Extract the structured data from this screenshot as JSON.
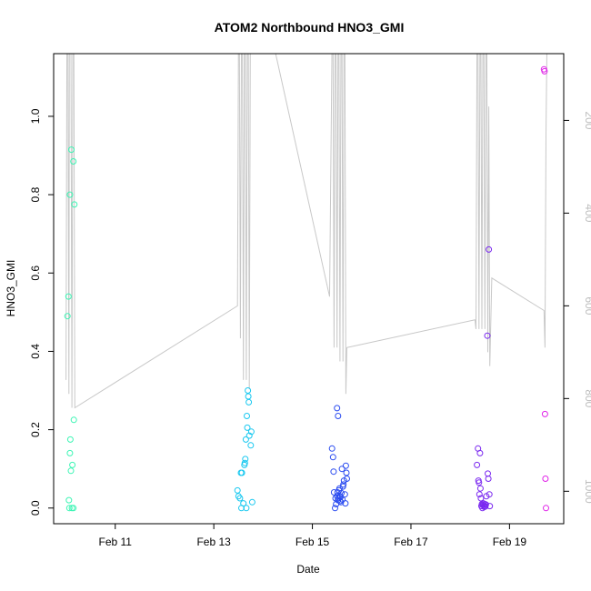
{
  "chart_data": {
    "type": "scatter",
    "title": "ATOM2 Northbound HNO3_GMI",
    "xlabel": "Date",
    "ylabel": "HNO3_GMI",
    "x_ticks": [
      "Feb 11",
      "Feb 13",
      "Feb 15",
      "Feb 17",
      "Feb 19"
    ],
    "x_tick_values": [
      11,
      13,
      15,
      17,
      19
    ],
    "y_ticks": [
      "0.0",
      "0.2",
      "0.4",
      "0.6",
      "0.8",
      "1.0"
    ],
    "y_tick_values": [
      0,
      0.2,
      0.4,
      0.6,
      0.8,
      1.0
    ],
    "y2_ticks": [
      "200",
      "400",
      "600",
      "800",
      "1000"
    ],
    "y2_tick_values": [
      200,
      400,
      600,
      800,
      1000
    ],
    "xlim": [
      9.75,
      20.1
    ],
    "ylim": [
      -0.04,
      1.16
    ],
    "y2lim": [
      1070,
      56
    ],
    "y2_reversed": true,
    "grid": false,
    "series": [
      {
        "color": "#3CF5B4",
        "points": [
          [
            10.03,
            0.49
          ],
          [
            10.05,
            0.54
          ],
          [
            10.06,
            0.02
          ],
          [
            10.07,
            0.0
          ],
          [
            10.08,
            0.14
          ],
          [
            10.08,
            0.8
          ],
          [
            10.09,
            0.175
          ],
          [
            10.1,
            0.095
          ],
          [
            10.11,
            0.915
          ],
          [
            10.12,
            0.0
          ],
          [
            10.13,
            0.11
          ],
          [
            10.15,
            0.0
          ],
          [
            10.15,
            0.885
          ],
          [
            10.16,
            0.225
          ],
          [
            10.17,
            0.775
          ]
        ]
      },
      {
        "color": "#18C8F0",
        "points": [
          [
            13.48,
            0.045
          ],
          [
            13.5,
            0.03
          ],
          [
            13.53,
            0.025
          ],
          [
            13.55,
            0.09
          ],
          [
            13.56,
            0.0
          ],
          [
            13.57,
            0.09
          ],
          [
            13.6,
            0.012
          ],
          [
            13.62,
            0.11
          ],
          [
            13.63,
            0.115
          ],
          [
            13.64,
            0.125
          ],
          [
            13.65,
            0.175
          ],
          [
            13.66,
            0.0
          ],
          [
            13.67,
            0.235
          ],
          [
            13.68,
            0.205
          ],
          [
            13.69,
            0.3
          ],
          [
            13.7,
            0.285
          ],
          [
            13.71,
            0.27
          ],
          [
            13.72,
            0.185
          ],
          [
            13.75,
            0.16
          ],
          [
            13.76,
            0.195
          ],
          [
            13.78,
            0.015
          ]
        ]
      },
      {
        "color": "#2A4BF0",
        "points": [
          [
            15.4,
            0.152
          ],
          [
            15.42,
            0.13
          ],
          [
            15.43,
            0.093
          ],
          [
            15.44,
            0.04
          ],
          [
            15.46,
            0.0
          ],
          [
            15.48,
            0.01
          ],
          [
            15.5,
            0.255
          ],
          [
            15.52,
            0.235
          ],
          [
            15.5,
            0.03
          ],
          [
            15.52,
            0.02
          ],
          [
            15.53,
            0.025
          ],
          [
            15.54,
            0.045
          ],
          [
            15.55,
            0.05
          ],
          [
            15.56,
            0.03
          ],
          [
            15.58,
            0.015
          ],
          [
            15.59,
            0.038
          ],
          [
            15.6,
            0.1
          ],
          [
            15.62,
            0.055
          ],
          [
            15.63,
            0.06
          ],
          [
            15.64,
            0.07
          ],
          [
            15.66,
            0.035
          ],
          [
            15.67,
            0.012
          ],
          [
            15.68,
            0.108
          ],
          [
            15.69,
            0.09
          ],
          [
            15.7,
            0.075
          ],
          [
            15.56,
            0.018
          ],
          [
            15.61,
            0.022
          ],
          [
            15.47,
            0.025
          ],
          [
            15.51,
            0.04
          ],
          [
            15.57,
            0.028
          ]
        ]
      },
      {
        "color": "#7A28F0",
        "points": [
          [
            18.34,
            0.11
          ],
          [
            18.36,
            0.152
          ],
          [
            18.37,
            0.07
          ],
          [
            18.38,
            0.065
          ],
          [
            18.39,
            0.035
          ],
          [
            18.4,
            0.14
          ],
          [
            18.41,
            0.05
          ],
          [
            18.42,
            0.025
          ],
          [
            18.43,
            0.005
          ],
          [
            18.44,
            0.01
          ],
          [
            18.45,
            0.0
          ],
          [
            18.46,
            0.008
          ],
          [
            18.47,
            0.012
          ],
          [
            18.48,
            0.006
          ],
          [
            18.49,
            0.003
          ],
          [
            18.5,
            0.01
          ],
          [
            18.51,
            0.004
          ],
          [
            18.52,
            0.009
          ],
          [
            18.53,
            0.03
          ],
          [
            18.55,
            0.44
          ],
          [
            18.56,
            0.088
          ],
          [
            18.57,
            0.075
          ],
          [
            18.58,
            0.66
          ],
          [
            18.59,
            0.035
          ],
          [
            18.6,
            0.005
          ]
        ]
      },
      {
        "color": "#E022E8",
        "points": [
          [
            19.7,
            1.12
          ],
          [
            19.71,
            1.115
          ],
          [
            19.72,
            0.24
          ],
          [
            19.73,
            0.075
          ],
          [
            19.74,
            0.0
          ]
        ]
      }
    ],
    "altitude_line": {
      "color": "#C8C8C8",
      "axis": "right",
      "points": [
        [
          10.0,
          760
        ],
        [
          10.02,
          30
        ],
        [
          10.04,
          30
        ],
        [
          10.06,
          790
        ],
        [
          10.07,
          30
        ],
        [
          10.1,
          30
        ],
        [
          10.12,
          820
        ],
        [
          10.14,
          30
        ],
        [
          10.16,
          30
        ],
        [
          10.18,
          820
        ],
        [
          13.48,
          600
        ],
        [
          13.5,
          30
        ],
        [
          13.52,
          30
        ],
        [
          13.54,
          670
        ],
        [
          13.56,
          30
        ],
        [
          13.58,
          30
        ],
        [
          13.6,
          760
        ],
        [
          13.62,
          30
        ],
        [
          13.64,
          30
        ],
        [
          13.66,
          760
        ],
        [
          13.68,
          30
        ],
        [
          13.7,
          30
        ],
        [
          13.72,
          780
        ],
        [
          13.74,
          30
        ],
        [
          13.76,
          30
        ],
        [
          14.2,
          30
        ],
        [
          15.35,
          580
        ],
        [
          15.4,
          30
        ],
        [
          15.42,
          30
        ],
        [
          15.44,
          690
        ],
        [
          15.46,
          30
        ],
        [
          15.48,
          30
        ],
        [
          15.5,
          690
        ],
        [
          15.52,
          30
        ],
        [
          15.54,
          30
        ],
        [
          15.56,
          720
        ],
        [
          15.58,
          30
        ],
        [
          15.6,
          30
        ],
        [
          15.62,
          720
        ],
        [
          15.64,
          30
        ],
        [
          15.66,
          30
        ],
        [
          15.68,
          790
        ],
        [
          15.7,
          690
        ],
        [
          18.3,
          630
        ],
        [
          18.32,
          650
        ],
        [
          18.34,
          30
        ],
        [
          18.36,
          30
        ],
        [
          18.38,
          650
        ],
        [
          18.4,
          30
        ],
        [
          18.42,
          30
        ],
        [
          18.44,
          650
        ],
        [
          18.46,
          30
        ],
        [
          18.48,
          30
        ],
        [
          18.5,
          650
        ],
        [
          18.52,
          30
        ],
        [
          18.54,
          30
        ],
        [
          18.56,
          700
        ],
        [
          18.58,
          170
        ],
        [
          18.6,
          730
        ],
        [
          18.64,
          540
        ],
        [
          19.7,
          610
        ],
        [
          19.72,
          690
        ],
        [
          19.74,
          230
        ],
        [
          19.76,
          30
        ]
      ]
    }
  }
}
